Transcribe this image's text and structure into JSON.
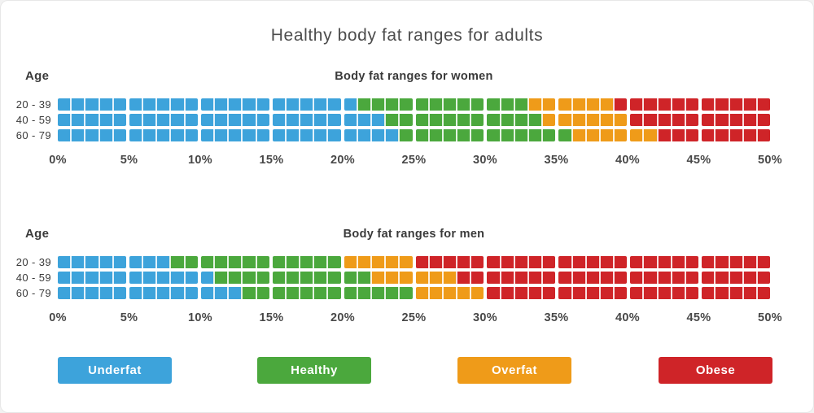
{
  "title": "Healthy body fat ranges for adults",
  "colors": {
    "underfat": "#3DA3DB",
    "healthy": "#4BA83D",
    "overfat": "#EF9B19",
    "obese": "#CF2428",
    "text_dark": "#3a3a3a",
    "title_gray": "#4d4d4d"
  },
  "legend": {
    "items": [
      {
        "label": "Underfat",
        "color": "#3DA3DB"
      },
      {
        "label": "Healthy",
        "color": "#4BA83D"
      },
      {
        "label": "Overfat",
        "color": "#EF9B19"
      },
      {
        "label": "Obese",
        "color": "#CF2428"
      }
    ]
  },
  "chart_data": [
    {
      "type": "bar",
      "orientation": "horizontal-stacked",
      "title": "Body fat ranges for women",
      "age_axis_label": "Age",
      "unit": "percent body fat",
      "xlim": [
        0,
        50
      ],
      "tick_step_pct": 5,
      "minor_tick_step_pct": 1,
      "x_ticks": [
        "0%",
        "5%",
        "10%",
        "15%",
        "20%",
        "25%",
        "30%",
        "35%",
        "40%",
        "45%",
        "50%"
      ],
      "categories": [
        "20 - 39",
        "40 - 59",
        "60 - 79"
      ],
      "series": [
        {
          "name": "Underfat",
          "color": "#3DA3DB",
          "values": [
            [
              0,
              21
            ],
            [
              0,
              23
            ],
            [
              0,
              24
            ]
          ]
        },
        {
          "name": "Healthy",
          "color": "#4BA83D",
          "values": [
            [
              21,
              33
            ],
            [
              23,
              34
            ],
            [
              24,
              36
            ]
          ]
        },
        {
          "name": "Overfat",
          "color": "#EF9B19",
          "values": [
            [
              33,
              39
            ],
            [
              34,
              40
            ],
            [
              36,
              42
            ]
          ]
        },
        {
          "name": "Obese",
          "color": "#CF2428",
          "values": [
            [
              39,
              50
            ],
            [
              40,
              50
            ],
            [
              42,
              50
            ]
          ]
        }
      ]
    },
    {
      "type": "bar",
      "orientation": "horizontal-stacked",
      "title": "Body fat ranges for men",
      "age_axis_label": "Age",
      "unit": "percent body fat",
      "xlim": [
        0,
        50
      ],
      "tick_step_pct": 5,
      "minor_tick_step_pct": 1,
      "x_ticks": [
        "0%",
        "5%",
        "10%",
        "15%",
        "20%",
        "25%",
        "30%",
        "35%",
        "40%",
        "45%",
        "50%"
      ],
      "categories": [
        "20 - 39",
        "40 - 59",
        "60 - 79"
      ],
      "series": [
        {
          "name": "Underfat",
          "color": "#3DA3DB",
          "values": [
            [
              0,
              8
            ],
            [
              0,
              11
            ],
            [
              0,
              13
            ]
          ]
        },
        {
          "name": "Healthy",
          "color": "#4BA83D",
          "values": [
            [
              8,
              20
            ],
            [
              11,
              22
            ],
            [
              13,
              25
            ]
          ]
        },
        {
          "name": "Overfat",
          "color": "#EF9B19",
          "values": [
            [
              20,
              25
            ],
            [
              22,
              28
            ],
            [
              25,
              30
            ]
          ]
        },
        {
          "name": "Obese",
          "color": "#CF2428",
          "values": [
            [
              25,
              50
            ],
            [
              28,
              50
            ],
            [
              30,
              50
            ]
          ]
        }
      ]
    }
  ]
}
